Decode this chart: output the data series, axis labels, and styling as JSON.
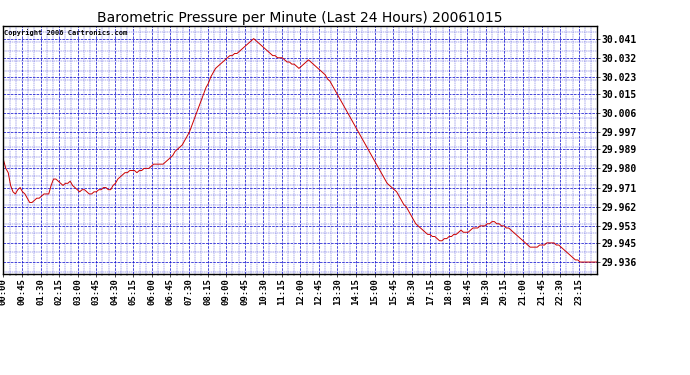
{
  "title": "Barometric Pressure per Minute (Last 24 Hours) 20061015",
  "copyright": "Copyright 2006 Cartronics.com",
  "line_color": "#cc0000",
  "background_color": "#ffffff",
  "grid_color": "#0000cc",
  "text_color": "#000000",
  "yticks": [
    29.936,
    29.945,
    29.953,
    29.962,
    29.971,
    29.98,
    29.989,
    29.997,
    30.006,
    30.015,
    30.023,
    30.032,
    30.041
  ],
  "ytick_labels": [
    "29.936",
    "29.945",
    "29.953",
    "29.962",
    "29.971",
    "29.980",
    "29.989",
    "29.997",
    "30.006",
    "30.015",
    "30.023",
    "30.032",
    "30.041"
  ],
  "ylim_min": 29.9305,
  "ylim_max": 30.0468,
  "xtick_labels": [
    "00:00",
    "00:45",
    "01:30",
    "02:15",
    "03:00",
    "03:45",
    "04:30",
    "05:15",
    "06:00",
    "06:45",
    "07:30",
    "08:15",
    "09:00",
    "09:45",
    "10:30",
    "11:15",
    "12:00",
    "12:45",
    "13:30",
    "14:15",
    "15:00",
    "15:45",
    "16:30",
    "17:15",
    "18:00",
    "18:45",
    "19:30",
    "20:15",
    "21:00",
    "21:45",
    "22:30",
    "23:15"
  ],
  "data_points": [
    29.984,
    29.98,
    29.978,
    29.972,
    29.969,
    29.968,
    29.97,
    29.971,
    29.969,
    29.968,
    29.966,
    29.964,
    29.964,
    29.965,
    29.966,
    29.966,
    29.967,
    29.968,
    29.968,
    29.968,
    29.972,
    29.975,
    29.975,
    29.974,
    29.973,
    29.972,
    29.973,
    29.973,
    29.974,
    29.972,
    29.971,
    29.97,
    29.969,
    29.97,
    29.97,
    29.969,
    29.968,
    29.968,
    29.969,
    29.969,
    29.97,
    29.97,
    29.971,
    29.971,
    29.97,
    29.97,
    29.972,
    29.973,
    29.975,
    29.976,
    29.977,
    29.978,
    29.978,
    29.979,
    29.979,
    29.979,
    29.978,
    29.979,
    29.979,
    29.98,
    29.98,
    29.98,
    29.981,
    29.982,
    29.982,
    29.982,
    29.982,
    29.982,
    29.983,
    29.984,
    29.985,
    29.986,
    29.988,
    29.989,
    29.99,
    29.991,
    29.993,
    29.995,
    29.997,
    30.0,
    30.003,
    30.006,
    30.009,
    30.012,
    30.015,
    30.018,
    30.02,
    30.023,
    30.025,
    30.027,
    30.028,
    30.029,
    30.03,
    30.031,
    30.032,
    30.033,
    30.033,
    30.034,
    30.034,
    30.035,
    30.036,
    30.037,
    30.038,
    30.039,
    30.04,
    30.041,
    30.04,
    30.039,
    30.038,
    30.037,
    30.036,
    30.035,
    30.034,
    30.033,
    30.033,
    30.032,
    30.032,
    30.032,
    30.031,
    30.03,
    30.03,
    30.029,
    30.029,
    30.028,
    30.027,
    30.028,
    30.029,
    30.03,
    30.031,
    30.03,
    30.029,
    30.028,
    30.027,
    30.026,
    30.025,
    30.024,
    30.022,
    30.021,
    30.019,
    30.017,
    30.015,
    30.013,
    30.011,
    30.009,
    30.007,
    30.005,
    30.003,
    30.001,
    29.999,
    29.997,
    29.995,
    29.993,
    29.991,
    29.989,
    29.987,
    29.985,
    29.983,
    29.981,
    29.979,
    29.977,
    29.975,
    29.973,
    29.972,
    29.971,
    29.97,
    29.969,
    29.967,
    29.965,
    29.963,
    29.962,
    29.96,
    29.958,
    29.956,
    29.954,
    29.953,
    29.952,
    29.951,
    29.95,
    29.949,
    29.949,
    29.948,
    29.948,
    29.947,
    29.946,
    29.946,
    29.947,
    29.947,
    29.948,
    29.948,
    29.949,
    29.949,
    29.95,
    29.951,
    29.95,
    29.95,
    29.95,
    29.951,
    29.952,
    29.952,
    29.952,
    29.953,
    29.953,
    29.953,
    29.954,
    29.954,
    29.955,
    29.955,
    29.954,
    29.954,
    29.953,
    29.953,
    29.952,
    29.952,
    29.951,
    29.95,
    29.949,
    29.948,
    29.947,
    29.946,
    29.945,
    29.944,
    29.943,
    29.943,
    29.943,
    29.943,
    29.944,
    29.944,
    29.944,
    29.945,
    29.945,
    29.945,
    29.945,
    29.944,
    29.944,
    29.943,
    29.942,
    29.941,
    29.94,
    29.939,
    29.938,
    29.937,
    29.937,
    29.936,
    29.936,
    29.936,
    29.936,
    29.936,
    29.936,
    29.936,
    29.936
  ]
}
